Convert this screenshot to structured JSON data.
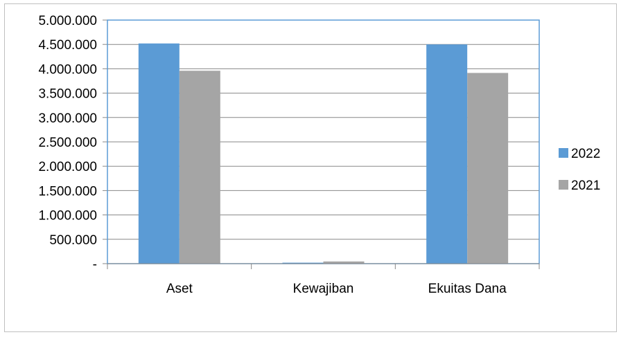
{
  "chart_data": {
    "type": "bar",
    "categories": [
      "Aset",
      "Kewajiban",
      "Ekuitas Dana"
    ],
    "series": [
      {
        "name": "2022",
        "values": [
          4520000,
          20000,
          4500000
        ]
      },
      {
        "name": "2021",
        "values": [
          3960000,
          45000,
          3915000
        ]
      }
    ],
    "ylim": [
      0,
      5000000
    ],
    "yticks": [
      {
        "value": 0,
        "label": "-"
      },
      {
        "value": 500000,
        "label": "500.000"
      },
      {
        "value": 1000000,
        "label": "1.000.000"
      },
      {
        "value": 1500000,
        "label": "1.500.000"
      },
      {
        "value": 2000000,
        "label": "2.000.000"
      },
      {
        "value": 2500000,
        "label": "2.500.000"
      },
      {
        "value": 3000000,
        "label": "3.000.000"
      },
      {
        "value": 3500000,
        "label": "3.500.000"
      },
      {
        "value": 4000000,
        "label": "4.000.000"
      },
      {
        "value": 4500000,
        "label": "4.500.000"
      },
      {
        "value": 5000000,
        "label": "5.000.000"
      }
    ],
    "grid": true,
    "legend_position": "right",
    "colors": [
      "#5b9bd5",
      "#a5a5a5"
    ]
  }
}
